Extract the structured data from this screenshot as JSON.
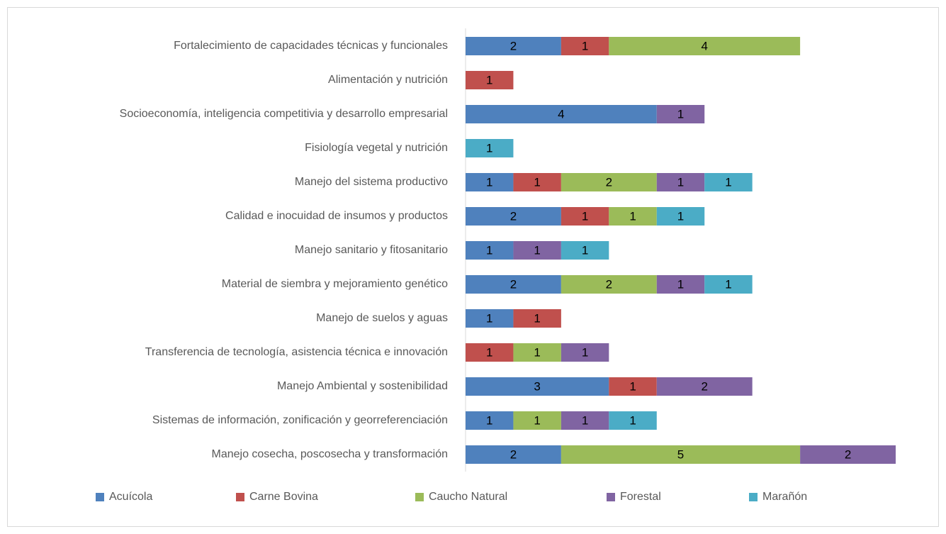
{
  "chart_data": {
    "type": "stacked_bar_horizontal",
    "categories": [
      "Fortalecimiento de capacidades técnicas y funcionales",
      "Alimentación y nutrición ",
      "Socioeconomía, inteligencia competitivia y desarrollo empresarial",
      "Fisiología vegetal y nutrición",
      "Manejo del sistema productivo",
      "Calidad e inocuidad de insumos y productos",
      "Manejo sanitario y fitosanitario",
      "Material de siembra y mejoramiento genético",
      "Manejo de suelos y aguas",
      "Transferencia de tecnología, asistencia técnica e innovación",
      "Manejo Ambiental y sostenibilidad",
      "Sistemas de información, zonificación y georreferenciación",
      "Manejo cosecha, poscosecha y transformación"
    ],
    "series": [
      {
        "name": "Acuícola",
        "color": "#4f81bd",
        "values": [
          2,
          null,
          4,
          null,
          1,
          2,
          1,
          2,
          1,
          null,
          3,
          1,
          2
        ]
      },
      {
        "name": "Carne Bovina",
        "color": "#c0504d",
        "values": [
          1,
          1,
          null,
          null,
          1,
          1,
          null,
          null,
          1,
          1,
          1,
          null,
          null
        ]
      },
      {
        "name": "Caucho Natural",
        "color": "#9bbb59",
        "values": [
          4,
          null,
          null,
          null,
          2,
          1,
          null,
          2,
          null,
          1,
          null,
          1,
          5
        ]
      },
      {
        "name": "Forestal",
        "color": "#8064a2",
        "values": [
          null,
          null,
          1,
          null,
          1,
          null,
          1,
          1,
          null,
          1,
          2,
          1,
          2
        ]
      },
      {
        "name": "Marañón",
        "color": "#4bacc6",
        "values": [
          null,
          null,
          null,
          1,
          1,
          1,
          1,
          1,
          null,
          null,
          null,
          1,
          null
        ]
      }
    ],
    "xlim": [
      0,
      9
    ],
    "legend": "bottom"
  }
}
